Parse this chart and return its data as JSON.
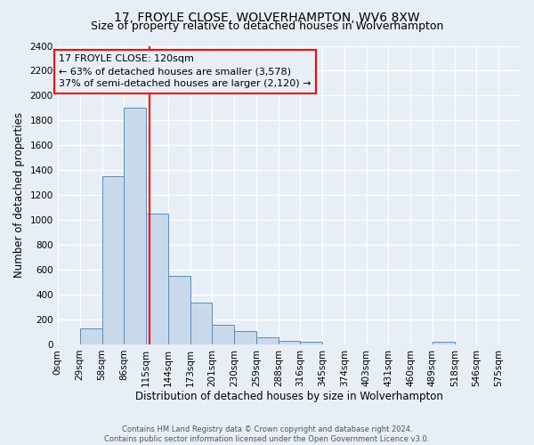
{
  "title": "17, FROYLE CLOSE, WOLVERHAMPTON, WV6 8XW",
  "subtitle": "Size of property relative to detached houses in Wolverhampton",
  "xlabel": "Distribution of detached houses by size in Wolverhampton",
  "ylabel": "Number of detached properties",
  "footer_lines": [
    "Contains HM Land Registry data © Crown copyright and database right 2024.",
    "Contains public sector information licensed under the Open Government Licence v3.0."
  ],
  "bin_labels": [
    "0sqm",
    "29sqm",
    "58sqm",
    "86sqm",
    "115sqm",
    "144sqm",
    "173sqm",
    "201sqm",
    "230sqm",
    "259sqm",
    "288sqm",
    "316sqm",
    "345sqm",
    "374sqm",
    "403sqm",
    "431sqm",
    "460sqm",
    "489sqm",
    "518sqm",
    "546sqm",
    "575sqm"
  ],
  "bar_values": [
    0,
    125,
    1350,
    1900,
    1050,
    550,
    335,
    160,
    105,
    60,
    30,
    20,
    0,
    0,
    0,
    0,
    0,
    20,
    0,
    0,
    0
  ],
  "bin_edges": [
    0,
    29,
    58,
    86,
    115,
    144,
    173,
    201,
    230,
    259,
    288,
    316,
    345,
    374,
    403,
    431,
    460,
    489,
    518,
    546,
    575
  ],
  "property_size": 120,
  "property_line_x": 120,
  "annotation_title": "17 FROYLE CLOSE: 120sqm",
  "annotation_line1": "← 63% of detached houses are smaller (3,578)",
  "annotation_line2": "37% of semi-detached houses are larger (2,120) →",
  "bar_color": "#c9d9ec",
  "bar_edge_color": "#5b8db8",
  "vline_color": "red",
  "annotation_box_edge_color": "red",
  "ylim": [
    0,
    2400
  ],
  "yticks": [
    0,
    200,
    400,
    600,
    800,
    1000,
    1200,
    1400,
    1600,
    1800,
    2000,
    2200,
    2400
  ],
  "bg_color": "#e8eef5",
  "grid_color": "white",
  "title_fontsize": 10,
  "subtitle_fontsize": 9,
  "axis_label_fontsize": 8.5,
  "tick_fontsize": 7.5,
  "annotation_fontsize": 8,
  "footer_fontsize": 6
}
